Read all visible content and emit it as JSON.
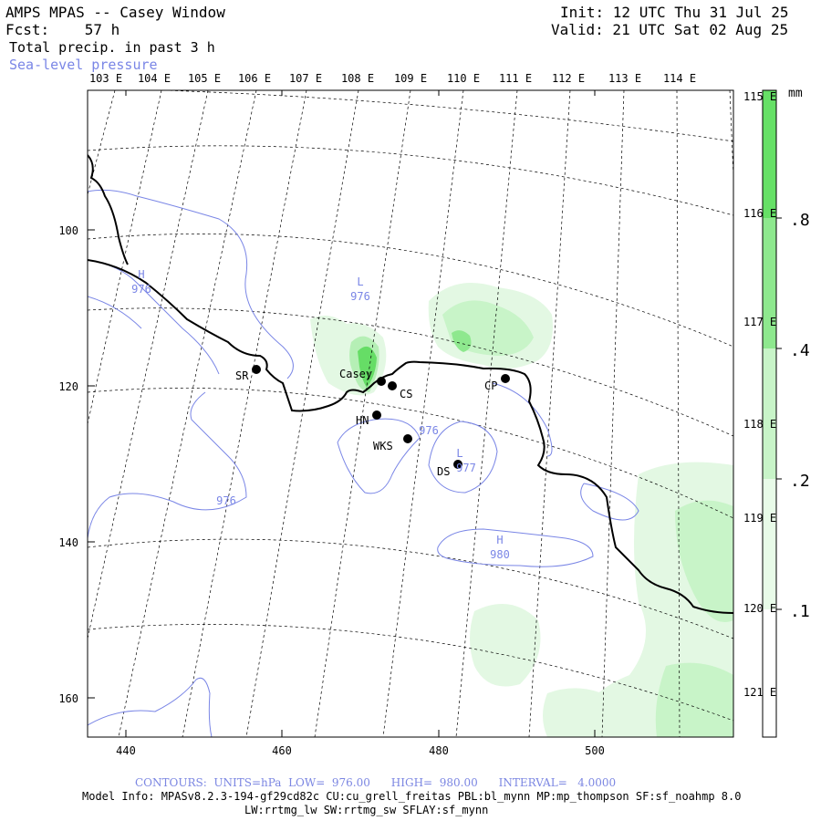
{
  "header": {
    "model_title": "AMPS MPAS -- Casey Window",
    "forecast_hour": "Fcst:    57 h",
    "init": "Init: 12 UTC Thu 31 Jul 25",
    "valid": "Valid: 21 UTC Sat 02 Aug 25",
    "field_1": "Total precip. in past 3 h",
    "field_2": "Sea-level pressure"
  },
  "map": {
    "top_lon_labels": [
      "103 E",
      "104 E",
      "105 E",
      "106 E",
      "107 E",
      "108 E",
      "109 E",
      "110 E",
      "111 E",
      "112 E",
      "113 E",
      "114 E"
    ],
    "right_lon_labels": [
      "115 E",
      "116 E",
      "117 E",
      "118 E",
      "119 E",
      "120 E",
      "121 E"
    ],
    "x_ticks": [
      "440",
      "460",
      "480",
      "500"
    ],
    "y_ticks": [
      "100",
      "120",
      "140",
      "160"
    ],
    "stations": [
      {
        "id": "SR",
        "label": "SR"
      },
      {
        "id": "Casey",
        "label": "Casey"
      },
      {
        "id": "CS",
        "label": "CS"
      },
      {
        "id": "HN",
        "label": "HN"
      },
      {
        "id": "WKS",
        "label": "WKS"
      },
      {
        "id": "DS",
        "label": "DS"
      },
      {
        "id": "CP",
        "label": "CP"
      }
    ],
    "pressure_labels": [
      {
        "sym": "L",
        "val": "976"
      },
      {
        "sym": "H",
        "val": "976"
      },
      {
        "sym": "H",
        "val": "980"
      },
      {
        "sym": "L",
        "val": "977"
      }
    ],
    "contour_labels": [
      "976",
      "976"
    ]
  },
  "colorbar": {
    "unit": "mm",
    "labels": [
      ".8",
      ".4",
      ".2",
      ".1"
    ],
    "colors": [
      "#66e066",
      "#8ee88e",
      "#c8f4c8",
      "#e8fbe8",
      "#ffffff"
    ]
  },
  "footer": {
    "contours": "CONTOURS:  UNITS=hPa  LOW=  976.00      HIGH=  980.00      INTERVAL=   4.0000",
    "model_info_1": "Model Info: MPASv8.2.3-194-gf29cd82c CU:cu_grell_freitas PBL:bl_mynn MP:mp_thompson SF:sf_noahmp 8.0",
    "model_info_2": "LW:rrtmg_lw SW:rrtmg_sw SFLAY:sf_mynn"
  },
  "colors": {
    "contour": "#7a86e6",
    "coast": "#000000",
    "precip_light": "#e3f8e3",
    "precip_mid": "#b5efb5",
    "precip_dark": "#66dd66"
  }
}
